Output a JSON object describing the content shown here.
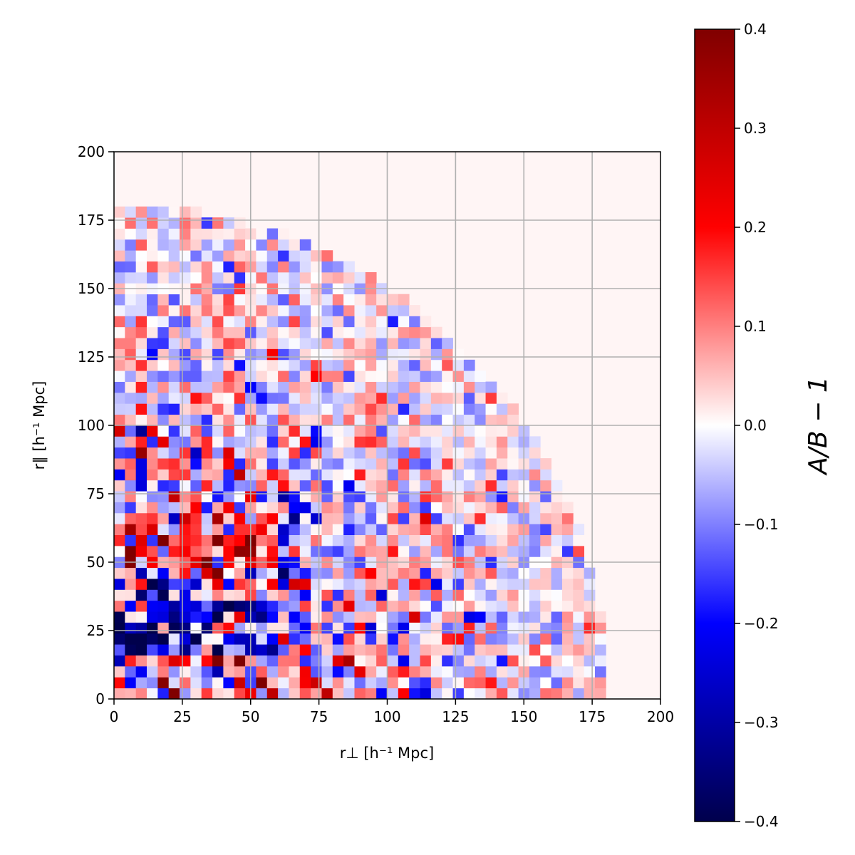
{
  "chart_data": {
    "type": "heatmap",
    "title": "",
    "xlabel": "r⊥ [h⁻¹ Mpc]",
    "ylabel": "r∥ [h⁻¹ Mpc]",
    "xlim": [
      0,
      200
    ],
    "ylim": [
      0,
      200
    ],
    "x_ticks": [
      "0",
      "25",
      "50",
      "75",
      "100",
      "125",
      "150",
      "175",
      "200"
    ],
    "y_ticks": [
      "0",
      "25",
      "50",
      "75",
      "100",
      "125",
      "150",
      "175",
      "200"
    ],
    "grid": true,
    "bin_size": 4,
    "data_extent": "quarter circle of radius ~180 h⁻¹ Mpc; empty bins outside",
    "colormap": "seismic",
    "colorbar": {
      "label": "A/B − 1",
      "vmin": -0.4,
      "vmax": 0.4,
      "ticks": [
        "0.4",
        "0.3",
        "0.2",
        "0.1",
        "0.0",
        "−0.1",
        "−0.2",
        "−0.3",
        "−0.4"
      ],
      "colors": [
        "#00004c",
        "#0000ff",
        "#ffffff",
        "#ff0000",
        "#800000"
      ]
    },
    "empty_bin_color": "#fff5f5",
    "value_summary": {
      "small_separation_region": "strong mixed positive/negative fluctuations, |A/B−1| up to ~0.4 for r⊥ < 60",
      "large_separation_region": "fluctuations mostly within ±0.15 beyond r ~ 120",
      "row_bias_r_parallel_15_to_35": "predominantly negative (~ −0.2 to −0.4)",
      "row_bias_r_parallel_50_to_65": "predominantly positive (~ +0.2 to +0.4)"
    }
  }
}
